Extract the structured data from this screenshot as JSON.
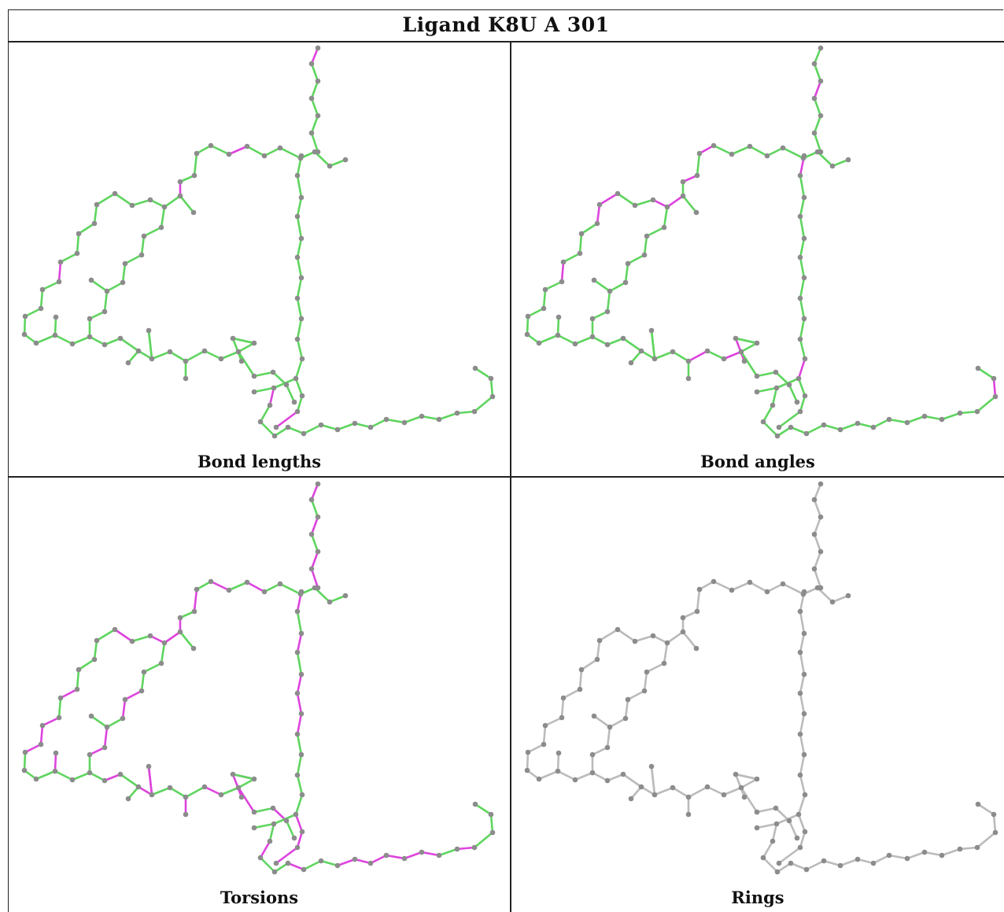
{
  "title": "Ligand K8U A 301",
  "panels": [
    {
      "key": "bond_lengths",
      "caption": "Bond lengths"
    },
    {
      "key": "bond_angles",
      "caption": "Bond angles"
    },
    {
      "key": "torsions",
      "caption": "Torsions"
    },
    {
      "key": "rings",
      "caption": "Rings"
    }
  ],
  "colors": {
    "ok": "#5fd55f",
    "outlier": "#dd44dd",
    "neutral": "#bbbbbb",
    "atom": "#8c8c8c",
    "border": "#222222"
  }
}
